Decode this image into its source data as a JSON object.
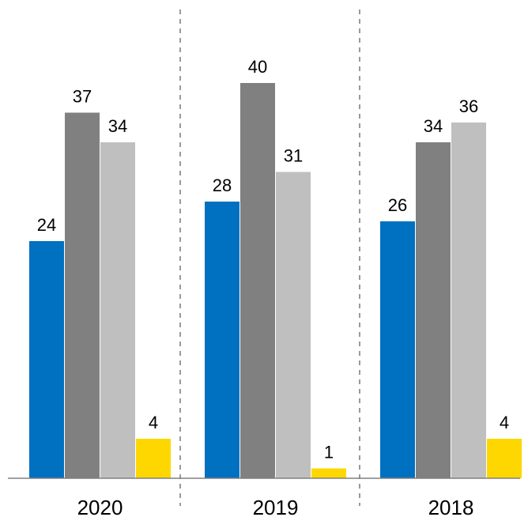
{
  "chart_data": {
    "type": "bar",
    "title": "",
    "xlabel": "",
    "ylabel": "",
    "categories": [
      "2020",
      "2019",
      "2018"
    ],
    "series": [
      {
        "values": [
          24,
          28,
          26
        ],
        "color": "#0070C0"
      },
      {
        "values": [
          37,
          40,
          34
        ],
        "color": "#808080"
      },
      {
        "values": [
          34,
          31,
          36
        ],
        "color": "#BFBFBF"
      },
      {
        "values": [
          4,
          1,
          4
        ],
        "color": "#FFD700"
      }
    ],
    "ylim": [
      0,
      40
    ],
    "grid": false,
    "legend": "none",
    "data_labels": true,
    "group_separators": "dashed",
    "axis_color": "#808080"
  }
}
